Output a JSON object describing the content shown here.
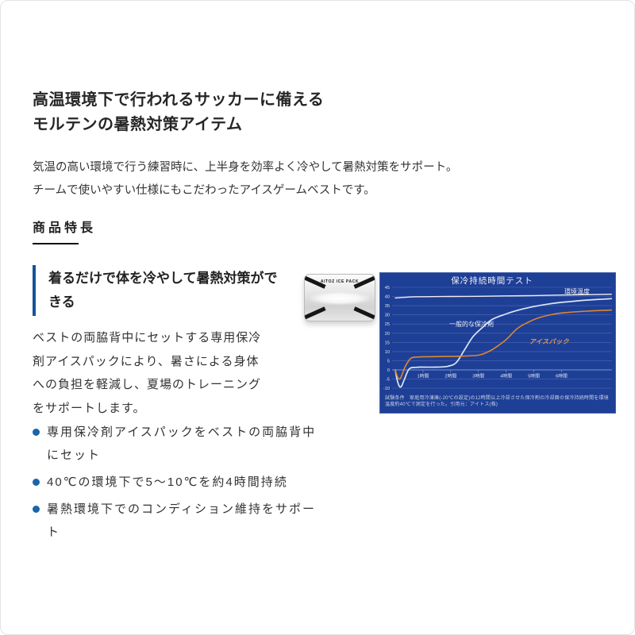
{
  "header": {
    "title": "高温環境下で行われるサッカーに備える\nモルテンの暑熱対策アイテム",
    "lead": "気温の高い環境で行う練習時に、上半身を効率よく冷やして暑熱対策をサポート。\nチームで使いやすい仕様にもこだわったアイスゲームベストです。"
  },
  "section": {
    "heading": "商品特長"
  },
  "feature": {
    "heading": "着るだけで体を冷やして暑熱対策がで\nきる",
    "body": "ベストの両脇背中にセットする専用保冷\n剤アイスパックにより、暑さによる身体\nへの負担を軽減し、夏場のトレーニング\nをサポートします。",
    "bullets": [
      "専用保冷剤アイスパックをベストの両脇背中\nにセット",
      "40℃の環境下で5〜10℃を約4時間持続",
      "暑熱環境下でのコンディション維持をサポー\nト"
    ]
  },
  "product_image": {
    "label": "AITOZ ICE PACK"
  },
  "colors": {
    "accent_blue": "#15549a",
    "bullet_blue": "#1a64ad",
    "chart_background": "#1e3f96",
    "chart_grid": "#5168b5",
    "ice_pack_orange": "#dd8634",
    "heading_text": "#262626"
  },
  "chart_data": {
    "type": "line",
    "title": "保冷持続時間テスト",
    "xlabel_ticks": [
      "1時間",
      "2時間",
      "3時間",
      "4時間",
      "5時間",
      "6時間"
    ],
    "ylim": [
      -10,
      45
    ],
    "ytick_step": 5,
    "grid": true,
    "legend_position": "inline-labels",
    "background": "#1e3f96",
    "series": [
      {
        "name": "環境温度",
        "color": "#efefef",
        "width": 1.4,
        "x": [
          0,
          0.5,
          1,
          2,
          3,
          4,
          5,
          6,
          7,
          7.8
        ],
        "y": [
          39.2,
          39.7,
          39.9,
          40,
          40.1,
          40.3,
          40.5,
          40.8,
          41,
          41.2
        ]
      },
      {
        "name": "一般的な保冷剤",
        "color": "#dde6f7",
        "width": 1.7,
        "x": [
          0,
          0.06,
          0.14,
          0.22,
          0.32,
          0.5,
          0.75,
          1,
          1.5,
          1.9,
          2.2,
          2.5,
          2.8,
          3.1,
          3.5,
          4,
          4.5,
          5,
          5.5,
          6,
          6.9,
          7.8
        ],
        "y": [
          0,
          -5,
          -8.8,
          -9,
          -5.5,
          0.5,
          1.4,
          1.5,
          1.5,
          2,
          4,
          11,
          18,
          22.5,
          27.5,
          30.5,
          32.8,
          34.5,
          35.8,
          36.8,
          38,
          38.8
        ]
      },
      {
        "name": "アイスパック",
        "color": "#dd8634",
        "width": 1.6,
        "x": [
          0,
          0.05,
          0.12,
          0.2,
          0.35,
          0.55,
          0.8,
          1.2,
          1.8,
          2.4,
          3,
          3.3,
          3.6,
          4,
          4.4,
          4.8,
          5.2,
          5.6,
          6,
          6.9,
          7.8
        ],
        "y": [
          0,
          -2.5,
          -4.8,
          -4.2,
          1.5,
          6.2,
          7,
          7.2,
          7.3,
          7.5,
          8,
          9.5,
          12,
          16.5,
          22.5,
          26,
          28.5,
          30,
          31,
          32,
          32.6
        ]
      }
    ],
    "note": "試験条件　家庭用冷凍庫(-20℃の設定)の12時間以上冷却させた保冷剤の冷却面の保冷持続時間を環境温度約40℃で測定を行った。引用元：アイトス(株)"
  }
}
